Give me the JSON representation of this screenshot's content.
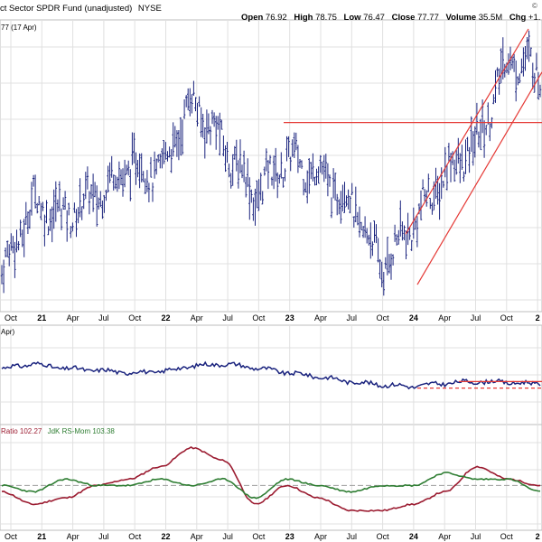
{
  "header": {
    "title": "ct Sector SPDR Fund (unadjusted)",
    "exchange": "NYSE",
    "open_label": "Open",
    "open_value": "76.92",
    "high_label": "High",
    "high_value": "78.75",
    "low_label": "Low",
    "low_value": "76.47",
    "close_label": "Close",
    "close_value": "77.77",
    "volume_label": "Volume",
    "volume_value": "35.5M",
    "chg_label": "Chg",
    "chg_value": "+1.",
    "logo_text": "©"
  },
  "price_panel": {
    "last_value_label": "77 (17 Apr)"
  },
  "ratio_panel": {
    "label": "Apr)"
  },
  "rrg_panel": {
    "ratio_label": "Ratio 102.27",
    "mom_label": "JdK RS-Mom 103.38"
  },
  "colors": {
    "price_line": "#1a237e",
    "trend_line": "#e53935",
    "rs_ratio_line": "#9b1b30",
    "rs_mom_line": "#2e7d32",
    "grid": "#e0e0e0",
    "panel_bg": "#f5f5f5"
  },
  "chart_data": [
    {
      "type": "ohlc",
      "title": "",
      "x_tick_labels": [
        "Oct",
        "21",
        "Apr",
        "Jul",
        "Oct",
        "22",
        "Apr",
        "Jul",
        "Oct",
        "23",
        "Apr",
        "Jul",
        "Oct",
        "24",
        "Apr",
        "Jul",
        "Oct",
        "2"
      ],
      "approx_close_path": [
        {
          "x": "2020-10",
          "y": 52
        },
        {
          "x": "2021-01",
          "y": 62
        },
        {
          "x": "2021-04",
          "y": 60
        },
        {
          "x": "2021-07",
          "y": 63
        },
        {
          "x": "2021-10",
          "y": 67
        },
        {
          "x": "2022-01",
          "y": 66
        },
        {
          "x": "2022-04",
          "y": 76
        },
        {
          "x": "2022-07",
          "y": 70
        },
        {
          "x": "2022-10",
          "y": 63
        },
        {
          "x": "2023-01",
          "y": 68
        },
        {
          "x": "2023-04",
          "y": 66
        },
        {
          "x": "2023-07",
          "y": 62
        },
        {
          "x": "2023-10",
          "y": 53
        },
        {
          "x": "2024-01",
          "y": 59
        },
        {
          "x": "2024-04",
          "y": 66
        },
        {
          "x": "2024-07",
          "y": 70
        },
        {
          "x": "2024-10",
          "y": 82
        },
        {
          "x": "2025-01",
          "y": 80
        }
      ],
      "horizontal_level": 73,
      "channel": "rising trend channel from 2024-01 to 2025-01"
    },
    {
      "type": "line",
      "title": "",
      "series": [
        {
          "values": [
            0.6,
            0.66,
            0.6,
            0.58,
            0.55,
            0.56,
            0.63,
            0.66,
            0.61,
            0.55,
            0.5,
            0.44,
            0.4,
            0.38,
            0.42,
            0.44,
            0.43,
            0.41
          ]
        }
      ]
    },
    {
      "type": "line",
      "title": "",
      "series": [
        {
          "name": "Ratio",
          "values": [
            99,
            97,
            98,
            100,
            101,
            103,
            106,
            104,
            97,
            100,
            98,
            96,
            96,
            97,
            99,
            103,
            101,
            100
          ]
        },
        {
          "name": "JdK RS-Mom",
          "values": [
            100,
            99,
            101,
            100,
            100,
            101,
            100,
            101,
            98,
            101,
            100,
            99,
            100,
            100,
            102,
            101,
            101,
            99
          ]
        }
      ],
      "reference_value": 100
    }
  ]
}
